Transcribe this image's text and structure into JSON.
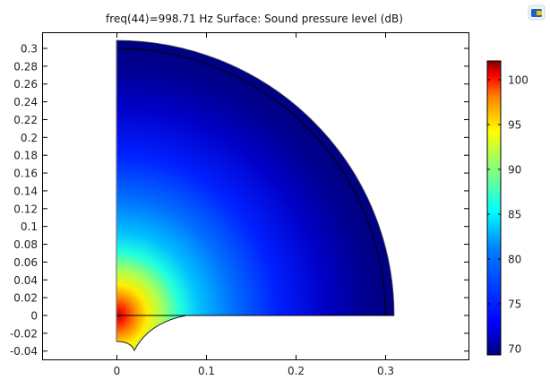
{
  "header": {
    "title": "freq(44)=998.71 Hz   Surface: Sound pressure level (dB)",
    "corner_icon": "comsol-logo-icon"
  },
  "colors": {
    "frame": "#000000",
    "background": "#ffffff",
    "colormap": "jet",
    "colormap_stops": [
      "#00007f",
      "#0000ff",
      "#007fff",
      "#00ffff",
      "#7fff7f",
      "#ffff00",
      "#ff7f00",
      "#ff0000",
      "#7f0000"
    ]
  },
  "chart_data": {
    "type": "heatmap",
    "title": "freq(44)=998.71 Hz   Surface: Sound pressure level (dB)",
    "xlabel": "",
    "ylabel": "",
    "xlim": [
      -0.083,
      0.393
    ],
    "ylim": [
      -0.049,
      0.318
    ],
    "x_ticks": [
      0,
      0.1,
      0.2,
      0.3
    ],
    "x_tick_labels": [
      "0",
      "0.1",
      "0.2",
      "0.3"
    ],
    "y_ticks": [
      -0.04,
      -0.02,
      0,
      0.02,
      0.04,
      0.06,
      0.08,
      0.1,
      0.12,
      0.14,
      0.16,
      0.18,
      0.2,
      0.22,
      0.24,
      0.26,
      0.28,
      0.3
    ],
    "y_tick_labels": [
      "-0.04",
      "-0.02",
      "0",
      "0.02",
      "0.04",
      "0.06",
      "0.08",
      "0.1",
      "0.12",
      "0.14",
      "0.16",
      "0.18",
      "0.2",
      "0.22",
      "0.24",
      "0.26",
      "0.28",
      "0.3"
    ],
    "grid": false,
    "colorbar": {
      "label": "Sound pressure level (dB)",
      "range": [
        69.3,
        102.1
      ],
      "ticks": [
        70,
        75,
        80,
        85,
        90,
        95,
        100
      ],
      "tick_labels": [
        "70",
        "75",
        "80",
        "85",
        "90",
        "95",
        "100"
      ],
      "position": "right"
    },
    "geometry": {
      "outer_quarter_circle_radius": 0.31,
      "inner_arc_radius": 0.3,
      "horn_region": {
        "x_start": 0,
        "x_end": 0.08,
        "y_bottom": -0.03,
        "cusp": [
          0.02,
          -0.04
        ]
      }
    },
    "field_description": "Radially decaying sound pressure level from source near origin",
    "sample_values": [
      {
        "r": 0.0,
        "spl": 100
      },
      {
        "r": 0.02,
        "spl": 92
      },
      {
        "r": 0.05,
        "spl": 85
      },
      {
        "r": 0.08,
        "spl": 81
      },
      {
        "r": 0.15,
        "spl": 76
      },
      {
        "r": 0.22,
        "spl": 73
      },
      {
        "r": 0.31,
        "spl": 70
      }
    ]
  }
}
